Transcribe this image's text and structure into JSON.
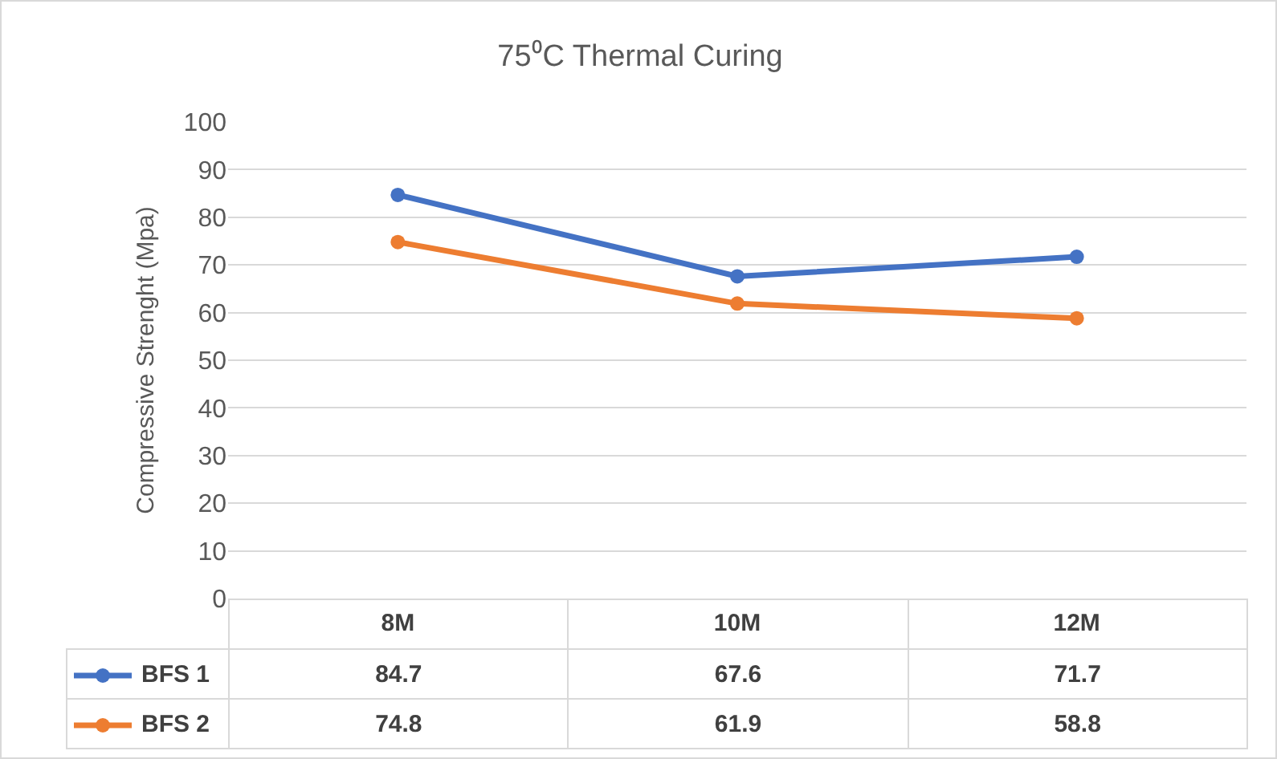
{
  "chart_data": {
    "type": "line",
    "title": "75⁰C Thermal Curing",
    "ylabel": "Compressive Strenght (Mpa)",
    "categories": [
      "8M",
      "10M",
      "12M"
    ],
    "series": [
      {
        "name": "BFS 1",
        "color": "#4472c4",
        "values": [
          84.7,
          67.6,
          71.7
        ]
      },
      {
        "name": "BFS 2",
        "color": "#ed7d31",
        "values": [
          74.8,
          61.9,
          58.8
        ]
      }
    ],
    "ylim": [
      0,
      100
    ],
    "yticks": [
      0,
      10,
      20,
      30,
      40,
      50,
      60,
      70,
      80,
      90,
      100
    ],
    "grid": "y",
    "legend": "bottom",
    "marker": "circle",
    "line_style": "solid",
    "data_labels": true
  }
}
